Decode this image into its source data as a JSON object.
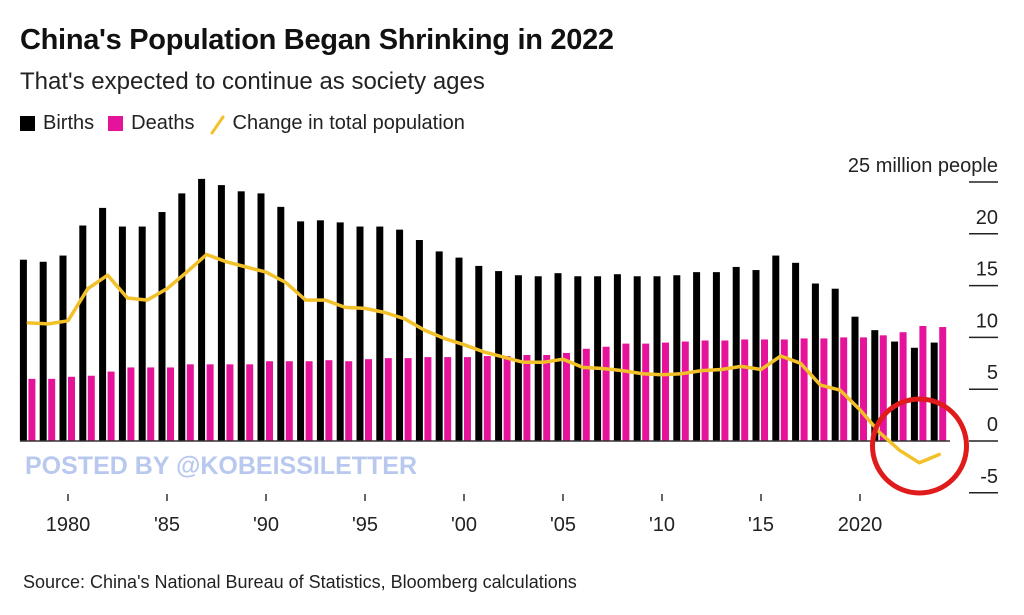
{
  "chart_data": {
    "type": "bar",
    "title": "China's Population Began Shrinking in 2022",
    "subtitle": "That's expected to continue as society ages",
    "xlabel": "",
    "ylabel": "million people",
    "y_unit_label": "25 million people",
    "ylim": [
      -7.5,
      25
    ],
    "y_ticks": [
      25,
      20,
      15,
      10,
      5,
      0,
      -5
    ],
    "y_tick_labels": [
      "25 million people",
      "20",
      "15",
      "10",
      "5",
      "0",
      "-5"
    ],
    "x_ticks": [
      1980,
      1985,
      1990,
      1995,
      2000,
      2005,
      2010,
      2015,
      2020
    ],
    "x_tick_labels": [
      "1980",
      "'85",
      "'90",
      "'95",
      "'00",
      "'05",
      "'10",
      "'15",
      "2020"
    ],
    "grid": false,
    "legend_placement": "top-left",
    "x": [
      1978,
      1979,
      1980,
      1981,
      1982,
      1983,
      1984,
      1985,
      1986,
      1987,
      1988,
      1989,
      1990,
      1991,
      1992,
      1993,
      1994,
      1995,
      1996,
      1997,
      1998,
      1999,
      2000,
      2001,
      2002,
      2003,
      2004,
      2005,
      2006,
      2007,
      2008,
      2009,
      2010,
      2011,
      2012,
      2013,
      2014,
      2015,
      2016,
      2017,
      2018,
      2019,
      2020,
      2021,
      2022,
      2023,
      2024
    ],
    "series": [
      {
        "name": "Births",
        "type": "bar",
        "color": "#000000",
        "values": [
          17.5,
          17.3,
          17.9,
          20.8,
          22.5,
          20.7,
          20.7,
          22.1,
          23.9,
          25.3,
          24.7,
          24.1,
          23.9,
          22.6,
          21.2,
          21.3,
          21.1,
          20.7,
          20.7,
          20.4,
          19.4,
          18.3,
          17.7,
          16.9,
          16.4,
          16.0,
          15.9,
          16.2,
          15.9,
          15.9,
          16.1,
          15.9,
          15.9,
          16.0,
          16.3,
          16.3,
          16.8,
          16.5,
          17.9,
          17.2,
          15.2,
          14.7,
          12.0,
          10.7,
          9.6,
          9.0,
          9.5
        ]
      },
      {
        "name": "Deaths",
        "type": "bar",
        "color": "#e5139a",
        "values": [
          6.0,
          6.0,
          6.2,
          6.3,
          6.7,
          7.1,
          7.1,
          7.1,
          7.4,
          7.4,
          7.4,
          7.4,
          7.7,
          7.7,
          7.7,
          7.8,
          7.7,
          7.9,
          8.0,
          8.0,
          8.1,
          8.1,
          8.1,
          8.2,
          8.2,
          8.3,
          8.3,
          8.5,
          8.9,
          9.1,
          9.4,
          9.4,
          9.5,
          9.6,
          9.7,
          9.7,
          9.8,
          9.8,
          9.8,
          9.9,
          9.9,
          10.0,
          10.0,
          10.2,
          10.5,
          11.1,
          11.0
        ]
      },
      {
        "name": "Change in total population",
        "type": "line",
        "color": "#f2c029",
        "values": [
          11.4,
          11.3,
          11.6,
          14.7,
          16.0,
          13.8,
          13.6,
          14.7,
          16.3,
          18.0,
          17.3,
          16.8,
          16.3,
          15.3,
          13.6,
          13.6,
          12.9,
          12.8,
          12.4,
          11.8,
          10.7,
          9.9,
          9.3,
          8.6,
          8.1,
          7.6,
          7.6,
          7.9,
          7.1,
          7.0,
          6.8,
          6.5,
          6.4,
          6.5,
          6.8,
          6.9,
          7.2,
          6.9,
          8.2,
          7.5,
          5.4,
          4.9,
          3.0,
          0.8,
          -0.9,
          -2.1,
          -1.3
        ]
      }
    ],
    "annotations": [
      {
        "type": "circle",
        "color": "#e01b1b",
        "around_years": [
          2021,
          2024
        ],
        "meaning": "highlight negative population change"
      }
    ]
  },
  "legend": {
    "births_label": "Births",
    "deaths_label": "Deaths",
    "change_label": "Change in total population",
    "births_color": "#000000",
    "deaths_color": "#e5139a",
    "change_color": "#f2c029"
  },
  "watermark": "POSTED BY @KOBEISSILETTER",
  "source": "Source: China's National Bureau of Statistics, Bloomberg calculations"
}
